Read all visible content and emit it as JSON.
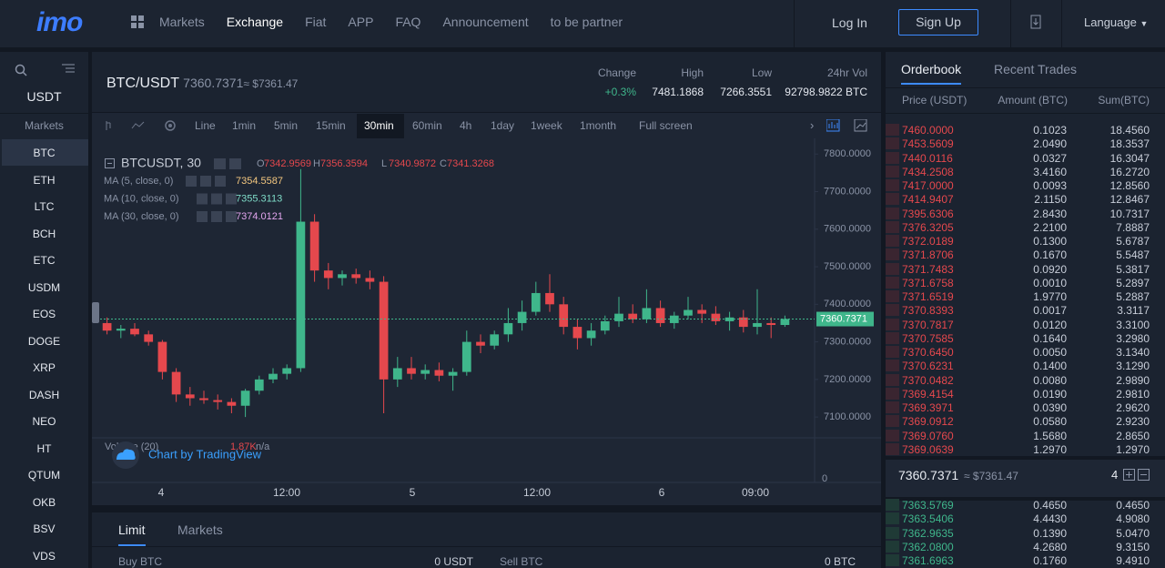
{
  "nav": {
    "logo": "imo",
    "items": [
      "Markets",
      "Exchange",
      "Fiat",
      "APP",
      "FAQ",
      "Announcement",
      "to be partner"
    ],
    "active": 1,
    "login": "Log In",
    "signup": "Sign Up",
    "language": "Language"
  },
  "sidebar": {
    "quote": "USDT",
    "heading": "Markets",
    "coins": [
      "BTC",
      "ETH",
      "LTC",
      "BCH",
      "ETC",
      "USDM",
      "EOS",
      "DOGE",
      "XRP",
      "DASH",
      "NEO",
      "HT",
      "QTUM",
      "OKB",
      "BSV",
      "VDS"
    ],
    "active": 0
  },
  "ticker": {
    "pair": "BTC/USDT",
    "price": "7360.7371",
    "approx": "≈ $7361.47",
    "stats": [
      {
        "label": "Change",
        "value": "+0.3%"
      },
      {
        "label": "High",
        "value": "7481.1868"
      },
      {
        "label": "Low",
        "value": "7266.3551"
      },
      {
        "label": "24hr Vol",
        "value": "92798.9822 BTC"
      }
    ]
  },
  "toolbar": {
    "items": [
      "Line",
      "1min",
      "5min",
      "15min",
      "30min",
      "60min",
      "4h",
      "1day",
      "1week",
      "1month",
      "Full screen"
    ],
    "active": 4
  },
  "chart_data": {
    "type": "candlestick",
    "symbol": "BTCUSDT, 30",
    "ohlc_labels": [
      "O",
      "H",
      "L",
      "C"
    ],
    "ohlc": [
      "7342.9569",
      "7356.3594",
      "7340.9872",
      "7341.3268"
    ],
    "indicators": [
      {
        "name": "MA (5, close, 0)",
        "value": "7354.5587",
        "color": "#f3c77f"
      },
      {
        "name": "MA (10, close, 0)",
        "value": "7355.3113",
        "color": "#7fdcc8"
      },
      {
        "name": "MA (30, close, 0)",
        "value": "7374.0121",
        "color": "#e3a6ef"
      }
    ],
    "volume_label": "Volume (20)",
    "volume_value": "1.87K",
    "volume_extra": "n/a",
    "volume_zero": 0,
    "watermark": "Chart by TradingView",
    "xlabels": [
      "4",
      "12:00",
      "5",
      "12:00",
      "6",
      "09:00"
    ],
    "ylim": [
      7030,
      7820
    ],
    "yticks": [
      {
        "value": 7800,
        "label": "7800.0000"
      },
      {
        "value": 7700,
        "label": "7700.0000"
      },
      {
        "value": 7600,
        "label": "7600.0000"
      },
      {
        "value": 7500,
        "label": "7500.0000"
      },
      {
        "value": 7400,
        "label": "7400.0000"
      },
      {
        "value": 7300,
        "label": "7300.0000"
      },
      {
        "value": 7200,
        "label": "7200.0000"
      },
      {
        "value": 7100,
        "label": "7100.0000"
      }
    ],
    "last_price": {
      "value": 7360.7371,
      "label": "7360.7371"
    },
    "up_color": "#3fb68b",
    "down_color": "#e5484d",
    "candles": [
      {
        "o": 7350,
        "h": 7365,
        "l": 7320,
        "c": 7330
      },
      {
        "o": 7330,
        "h": 7345,
        "l": 7310,
        "c": 7335
      },
      {
        "o": 7335,
        "h": 7350,
        "l": 7315,
        "c": 7320
      },
      {
        "o": 7320,
        "h": 7330,
        "l": 7290,
        "c": 7300
      },
      {
        "o": 7300,
        "h": 7305,
        "l": 7200,
        "c": 7220
      },
      {
        "o": 7220,
        "h": 7230,
        "l": 7140,
        "c": 7160
      },
      {
        "o": 7160,
        "h": 7180,
        "l": 7130,
        "c": 7150
      },
      {
        "o": 7150,
        "h": 7170,
        "l": 7135,
        "c": 7145
      },
      {
        "o": 7145,
        "h": 7160,
        "l": 7120,
        "c": 7140
      },
      {
        "o": 7140,
        "h": 7150,
        "l": 7110,
        "c": 7130
      },
      {
        "o": 7130,
        "h": 7175,
        "l": 7100,
        "c": 7170
      },
      {
        "o": 7170,
        "h": 7210,
        "l": 7160,
        "c": 7200
      },
      {
        "o": 7200,
        "h": 7230,
        "l": 7190,
        "c": 7215
      },
      {
        "o": 7215,
        "h": 7240,
        "l": 7200,
        "c": 7230
      },
      {
        "o": 7230,
        "h": 7760,
        "l": 7220,
        "c": 7620
      },
      {
        "o": 7620,
        "h": 7640,
        "l": 7460,
        "c": 7490
      },
      {
        "o": 7490,
        "h": 7510,
        "l": 7440,
        "c": 7470
      },
      {
        "o": 7470,
        "h": 7490,
        "l": 7450,
        "c": 7480
      },
      {
        "o": 7480,
        "h": 7495,
        "l": 7455,
        "c": 7470
      },
      {
        "o": 7470,
        "h": 7490,
        "l": 7440,
        "c": 7460
      },
      {
        "o": 7460,
        "h": 7475,
        "l": 7110,
        "c": 7200
      },
      {
        "o": 7200,
        "h": 7260,
        "l": 7180,
        "c": 7230
      },
      {
        "o": 7230,
        "h": 7260,
        "l": 7200,
        "c": 7215
      },
      {
        "o": 7215,
        "h": 7240,
        "l": 7200,
        "c": 7225
      },
      {
        "o": 7225,
        "h": 7245,
        "l": 7195,
        "c": 7210
      },
      {
        "o": 7210,
        "h": 7230,
        "l": 7170,
        "c": 7220
      },
      {
        "o": 7220,
        "h": 7330,
        "l": 7210,
        "c": 7300
      },
      {
        "o": 7300,
        "h": 7320,
        "l": 7270,
        "c": 7290
      },
      {
        "o": 7290,
        "h": 7330,
        "l": 7280,
        "c": 7320
      },
      {
        "o": 7320,
        "h": 7390,
        "l": 7300,
        "c": 7350
      },
      {
        "o": 7350,
        "h": 7410,
        "l": 7330,
        "c": 7380
      },
      {
        "o": 7380,
        "h": 7460,
        "l": 7370,
        "c": 7430
      },
      {
        "o": 7430,
        "h": 7480,
        "l": 7380,
        "c": 7400
      },
      {
        "o": 7400,
        "h": 7420,
        "l": 7320,
        "c": 7340
      },
      {
        "o": 7340,
        "h": 7360,
        "l": 7280,
        "c": 7310
      },
      {
        "o": 7310,
        "h": 7350,
        "l": 7290,
        "c": 7330
      },
      {
        "o": 7330,
        "h": 7370,
        "l": 7320,
        "c": 7355
      },
      {
        "o": 7355,
        "h": 7420,
        "l": 7340,
        "c": 7375
      },
      {
        "o": 7375,
        "h": 7400,
        "l": 7350,
        "c": 7360
      },
      {
        "o": 7360,
        "h": 7440,
        "l": 7350,
        "c": 7390
      },
      {
        "o": 7390,
        "h": 7410,
        "l": 7340,
        "c": 7350
      },
      {
        "o": 7350,
        "h": 7380,
        "l": 7335,
        "c": 7370
      },
      {
        "o": 7370,
        "h": 7420,
        "l": 7360,
        "c": 7385
      },
      {
        "o": 7385,
        "h": 7400,
        "l": 7350,
        "c": 7375
      },
      {
        "o": 7375,
        "h": 7395,
        "l": 7345,
        "c": 7355
      },
      {
        "o": 7355,
        "h": 7380,
        "l": 7330,
        "c": 7365
      },
      {
        "o": 7365,
        "h": 7385,
        "l": 7325,
        "c": 7340
      },
      {
        "o": 7340,
        "h": 7440,
        "l": 7320,
        "c": 7350
      },
      {
        "o": 7350,
        "h": 7365,
        "l": 7310,
        "c": 7345
      },
      {
        "o": 7345,
        "h": 7370,
        "l": 7340,
        "c": 7361
      }
    ]
  },
  "orderbook": {
    "tabs": [
      "Orderbook",
      "Recent Trades"
    ],
    "columns": [
      "Price (USDT)",
      "Amount (BTC)",
      "Sum(BTC)"
    ],
    "asks": [
      [
        "7460.0000",
        "0.1023",
        "18.4560"
      ],
      [
        "7453.5609",
        "2.0490",
        "18.3537"
      ],
      [
        "7440.0116",
        "0.0327",
        "16.3047"
      ],
      [
        "7434.2508",
        "3.4160",
        "16.2720"
      ],
      [
        "7417.0000",
        "0.0093",
        "12.8560"
      ],
      [
        "7414.9407",
        "2.1150",
        "12.8467"
      ],
      [
        "7395.6306",
        "2.8430",
        "10.7317"
      ],
      [
        "7376.3205",
        "2.2100",
        "7.8887"
      ],
      [
        "7372.0189",
        "0.1300",
        "5.6787"
      ],
      [
        "7371.8706",
        "0.1670",
        "5.5487"
      ],
      [
        "7371.7483",
        "0.0920",
        "5.3817"
      ],
      [
        "7371.6758",
        "0.0010",
        "5.2897"
      ],
      [
        "7371.6519",
        "1.9770",
        "5.2887"
      ],
      [
        "7370.8393",
        "0.0017",
        "3.3117"
      ],
      [
        "7370.7817",
        "0.0120",
        "3.3100"
      ],
      [
        "7370.7585",
        "0.1640",
        "3.2980"
      ],
      [
        "7370.6450",
        "0.0050",
        "3.1340"
      ],
      [
        "7370.6231",
        "0.1400",
        "3.1290"
      ],
      [
        "7370.0482",
        "0.0080",
        "2.9890"
      ],
      [
        "7369.4154",
        "0.0190",
        "2.9810"
      ],
      [
        "7369.3971",
        "0.0390",
        "2.9620"
      ],
      [
        "7369.0912",
        "0.0580",
        "2.9230"
      ],
      [
        "7369.0760",
        "1.5680",
        "2.8650"
      ],
      [
        "7369.0639",
        "1.2970",
        "1.2970"
      ]
    ],
    "last": "7360.7371",
    "last_approx": "≈ $7361.47",
    "depth": 4,
    "bids": [
      [
        "7363.5769",
        "0.4650",
        "0.4650"
      ],
      [
        "7363.5406",
        "4.4430",
        "4.9080"
      ],
      [
        "7362.9635",
        "0.1390",
        "5.0470"
      ],
      [
        "7362.0800",
        "4.2680",
        "9.3150"
      ],
      [
        "7361.6963",
        "0.1760",
        "9.4910"
      ]
    ]
  },
  "order": {
    "tabs": [
      "Limit",
      "Markets"
    ],
    "buy_label": "Buy BTC",
    "buy_balance": "0 USDT",
    "sell_label": "Sell BTC",
    "sell_balance": "0 BTC"
  }
}
